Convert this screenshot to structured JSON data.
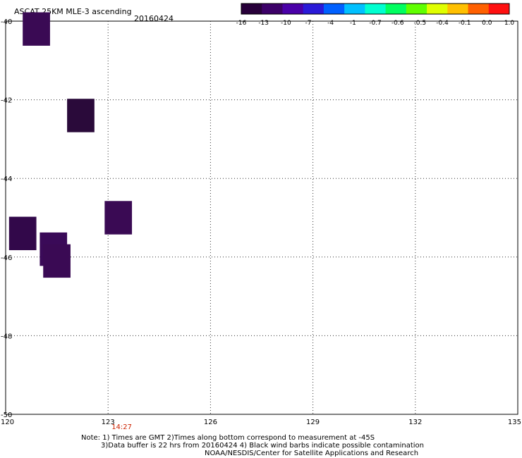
{
  "header": {
    "title": "ASCAT 25KM MLE-3 ascending",
    "date": "20160424"
  },
  "colorbar": {
    "labels": [
      "-16",
      "-13",
      "-10",
      "-7",
      "-4",
      "-1",
      "-0.7",
      "-0.6",
      "-0.5",
      "-0.4",
      "-0.1",
      "0.0",
      "1.0"
    ],
    "colors": [
      "#28003a",
      "#3c0068",
      "#4a00a8",
      "#2a1ad8",
      "#0060ff",
      "#00c0ff",
      "#00ffd0",
      "#00ff60",
      "#60ff00",
      "#e0ff00",
      "#ffc000",
      "#ff6000",
      "#ff1010"
    ]
  },
  "map": {
    "lon_range": [
      120,
      135
    ],
    "lat_range": [
      -40,
      -50
    ],
    "x_ticks": [
      "120",
      "123",
      "126",
      "129",
      "132",
      "135"
    ],
    "y_ticks": [
      "-40",
      "-42",
      "-44",
      "-46",
      "-48",
      "-50"
    ],
    "time_label": "14:27",
    "grid_lines": "dotted",
    "cells": [
      {
        "lon": 120.9,
        "lat": -40.2,
        "color": "#3a0a54"
      },
      {
        "lon": 122.2,
        "lat": -42.4,
        "color": "#2a0a3a"
      },
      {
        "lon": 123.3,
        "lat": -45.0,
        "color": "#3a0a54"
      },
      {
        "lon": 120.5,
        "lat": -45.4,
        "color": "#32084a"
      },
      {
        "lon": 121.4,
        "lat": -45.8,
        "color": "#3a0a58"
      },
      {
        "lon": 121.5,
        "lat": -46.1,
        "color": "#3a0a54"
      }
    ]
  },
  "notes": {
    "line1": "Note: 1) Times are GMT 2)Times along bottom correspond to measurement at -45S",
    "line2": "3)Data buffer is 22 hrs from 20160424 4) Black wind barbs indicate possible contamination",
    "line3": "NOAA/NESDIS/Center for Satellite Applications and Research"
  }
}
